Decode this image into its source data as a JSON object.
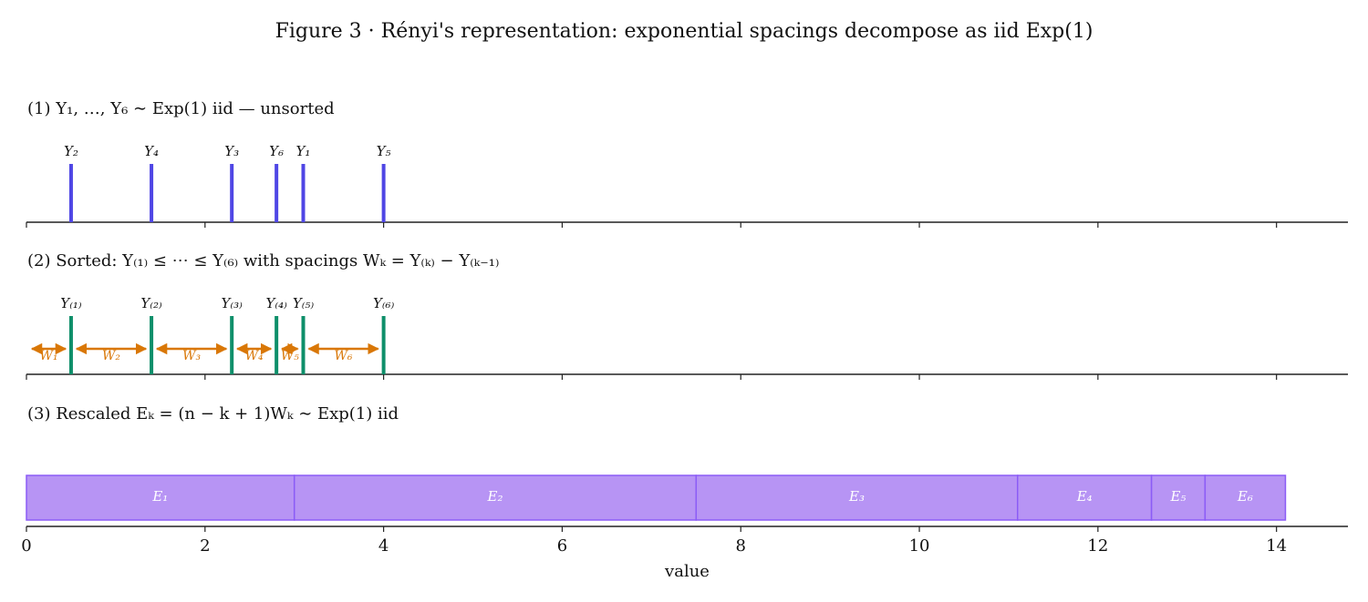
{
  "title": "Figure 3 · Rényi's representation: exponential spacings decompose as iid Exp(1)",
  "chart_data": [
    {
      "type": "rug",
      "title": "(1) Y₁, …, Y₆ ∼ Exp(1) iid — unsorted",
      "labels": [
        "Y₁",
        "Y₂",
        "Y₃",
        "Y₄",
        "Y₅",
        "Y₆"
      ],
      "x": [
        3.1,
        0.5,
        2.3,
        1.4,
        4.0,
        2.8
      ],
      "color": "#4f46e5",
      "xlim": [
        0,
        14.8
      ],
      "xticks": [
        0,
        2,
        4,
        6,
        8,
        10,
        12,
        14
      ],
      "tick_labels": false
    },
    {
      "type": "rug",
      "title": "(2) Sorted: Y₍₁₎ ≤ ⋯ ≤ Y₍₆₎ with spacings Wₖ = Y₍ₖ₎ − Y₍ₖ₋₁₎",
      "labels": [
        "Y₍₁₎",
        "Y₍₂₎",
        "Y₍₃₎",
        "Y₍₄₎",
        "Y₍₅₎",
        "Y₍₆₎"
      ],
      "x": [
        0.5,
        1.4,
        2.3,
        2.8,
        3.1,
        4.0
      ],
      "color": "#0e8f6a",
      "spacings": {
        "labels": [
          "W₁",
          "W₂",
          "W₃",
          "W₄",
          "W₅",
          "W₆"
        ],
        "values": [
          0.5,
          0.9,
          0.9,
          0.5,
          0.3,
          0.9
        ],
        "color": "#d97706"
      },
      "xlim": [
        0,
        14.8
      ],
      "xticks": [
        0,
        2,
        4,
        6,
        8,
        10,
        12,
        14
      ],
      "tick_labels": false
    },
    {
      "type": "stacked-bar",
      "title": "(3) Rescaled Eₖ = (n − k + 1)Wₖ ∼ Exp(1) iid",
      "labels": [
        "E₁",
        "E₂",
        "E₃",
        "E₄",
        "E₅",
        "E₆"
      ],
      "values": [
        3.0,
        4.5,
        3.6,
        1.5,
        0.6,
        0.9
      ],
      "color": "#b794f4",
      "edgecolor": "#8b5cf6",
      "xlim": [
        0,
        14.8
      ],
      "xticks": [
        0,
        2,
        4,
        6,
        8,
        10,
        12,
        14
      ],
      "tick_labels": true,
      "xlabel": "value"
    }
  ]
}
